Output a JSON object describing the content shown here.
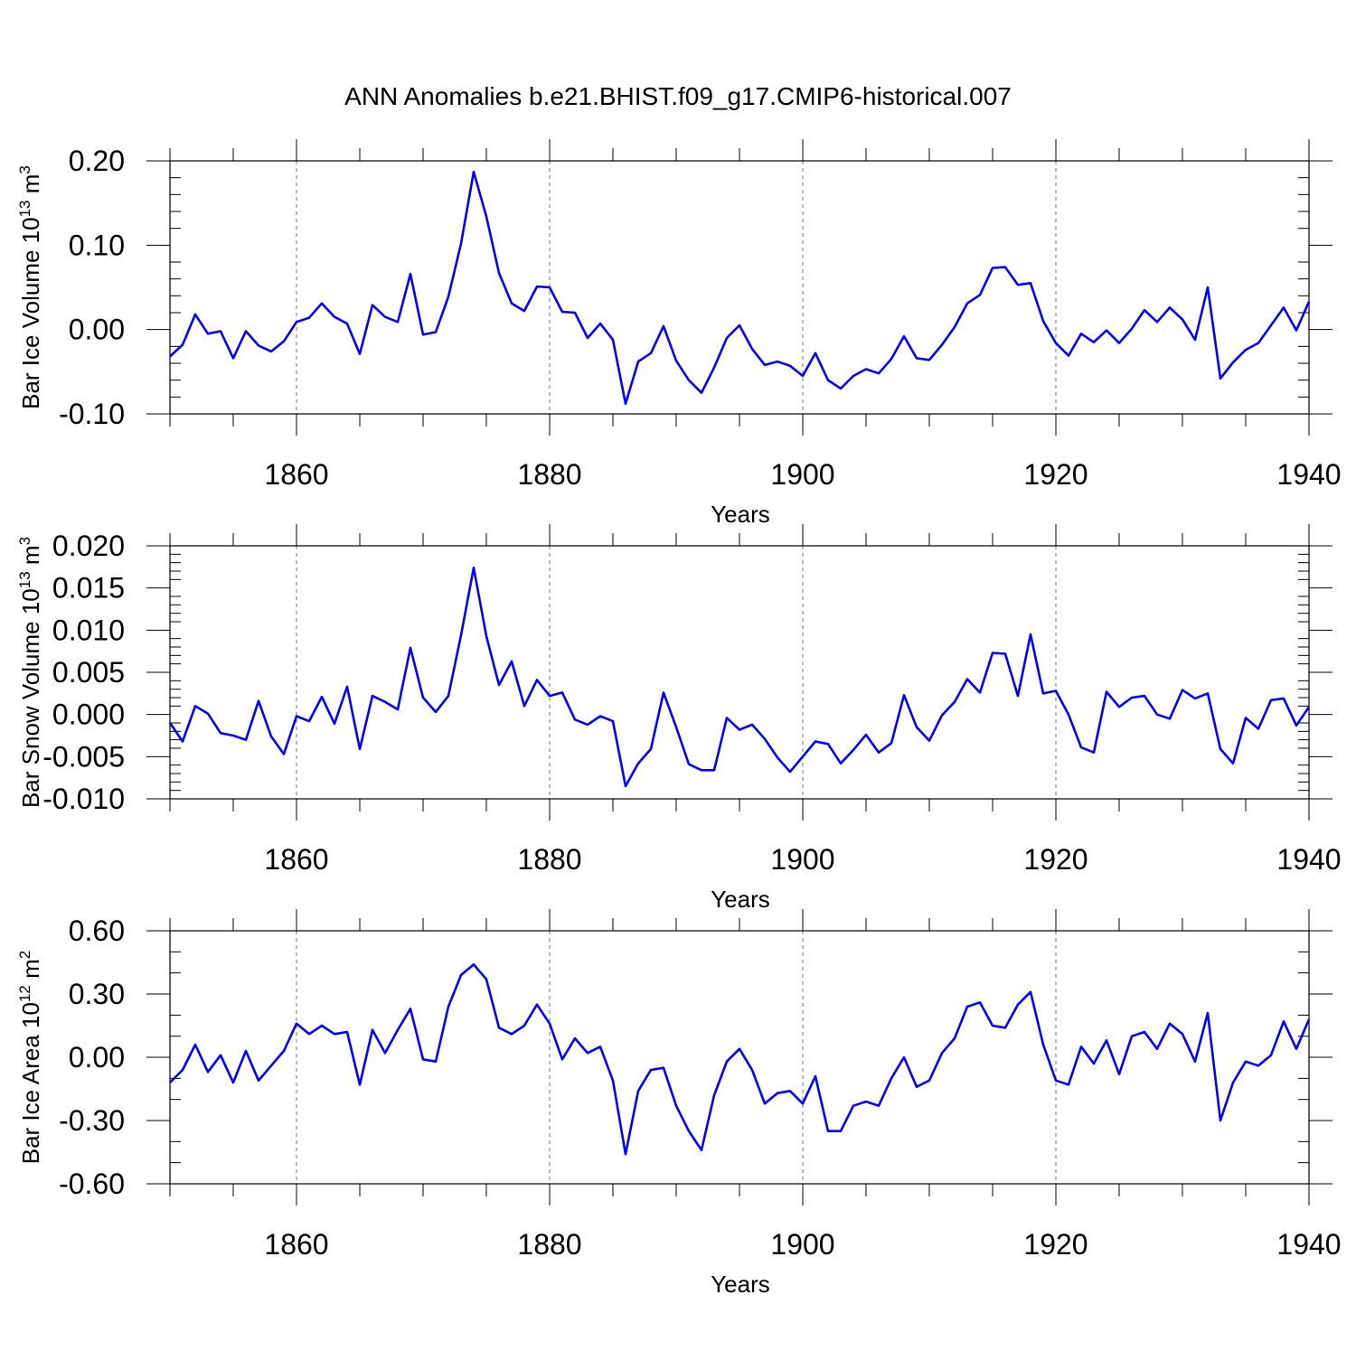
{
  "title": "ANN Anomalies b.e21.BHIST.f09_g17.CMIP6-historical.007",
  "line_color": "#0000ff",
  "chart_data": [
    {
      "type": "line",
      "ylabel_parts": [
        "Bar Ice Volume 10",
        "13",
        " m",
        "3"
      ],
      "xlabel": "Years",
      "xlim": [
        1850,
        1940
      ],
      "ylim": [
        -0.1,
        0.2
      ],
      "yticks": [
        -0.1,
        0.0,
        0.1,
        0.2
      ],
      "ytick_labels": [
        "-0.10",
        "0.00",
        "0.10",
        "0.20"
      ],
      "yminor_step": 0.02,
      "xticks": [
        1860,
        1880,
        1900,
        1920,
        1940
      ],
      "xtick_labels": [
        "1860",
        "1880",
        "1900",
        "1920",
        "1940"
      ],
      "grid_x_dashed": [
        1860,
        1880,
        1900,
        1920
      ],
      "x_start": 1850,
      "values": [
        -0.032,
        -0.018,
        0.018,
        -0.005,
        -0.002,
        -0.034,
        -0.002,
        -0.019,
        -0.026,
        -0.014,
        0.009,
        0.014,
        0.031,
        0.015,
        0.007,
        -0.029,
        0.029,
        0.015,
        0.009,
        0.066,
        -0.006,
        -0.003,
        0.039,
        0.102,
        0.187,
        0.134,
        0.067,
        0.031,
        0.022,
        0.051,
        0.05,
        0.021,
        0.02,
        -0.01,
        0.007,
        -0.012,
        -0.088,
        -0.038,
        -0.028,
        0.004,
        -0.037,
        -0.06,
        -0.075,
        -0.045,
        -0.01,
        0.005,
        -0.023,
        -0.042,
        -0.038,
        -0.043,
        -0.055,
        -0.028,
        -0.06,
        -0.07,
        -0.055,
        -0.047,
        -0.052,
        -0.035,
        -0.008,
        -0.034,
        -0.036,
        -0.018,
        0.003,
        0.031,
        0.041,
        0.073,
        0.074,
        0.053,
        0.055,
        0.01,
        -0.016,
        -0.031,
        -0.005,
        -0.015,
        -0.001,
        -0.016,
        0.001,
        0.023,
        0.009,
        0.026,
        0.012,
        -0.012,
        0.05,
        -0.058,
        -0.039,
        -0.024,
        -0.016,
        0.005,
        0.026,
        -0.001,
        0.033
      ]
    },
    {
      "type": "line",
      "ylabel_parts": [
        "Bar Snow Volume 10",
        "13",
        " m",
        "3"
      ],
      "xlabel": "Years",
      "xlim": [
        1850,
        1940
      ],
      "ylim": [
        -0.01,
        0.02
      ],
      "yticks": [
        -0.01,
        -0.005,
        0.0,
        0.005,
        0.01,
        0.015,
        0.02
      ],
      "ytick_labels": [
        "-0.010",
        "-0.005",
        "0.000",
        "0.005",
        "0.010",
        "0.015",
        "0.020"
      ],
      "yminor_step": 0.001,
      "xticks": [
        1860,
        1880,
        1900,
        1920,
        1940
      ],
      "xtick_labels": [
        "1860",
        "1880",
        "1900",
        "1920",
        "1940"
      ],
      "grid_x_dashed": [
        1860,
        1880,
        1900,
        1920
      ],
      "x_start": 1850,
      "values": [
        -0.001,
        -0.0032,
        0.001,
        0.0001,
        -0.0022,
        -0.0025,
        -0.003,
        0.0016,
        -0.0026,
        -0.0047,
        -0.0002,
        -0.0008,
        0.0021,
        -0.0011,
        0.0033,
        -0.0041,
        0.0022,
        0.0015,
        0.0006,
        0.0079,
        0.002,
        0.0003,
        0.0022,
        0.0094,
        0.0174,
        0.0093,
        0.0035,
        0.0063,
        0.001,
        0.0041,
        0.0022,
        0.0026,
        -0.0006,
        -0.0012,
        -0.0002,
        -0.0008,
        -0.0085,
        -0.0058,
        -0.0041,
        0.0026,
        -0.0015,
        -0.0059,
        -0.0066,
        -0.0066,
        -0.0004,
        -0.0018,
        -0.0012,
        -0.0029,
        -0.0051,
        -0.0068,
        -0.005,
        -0.0032,
        -0.0035,
        -0.0058,
        -0.0042,
        -0.0024,
        -0.0045,
        -0.0034,
        0.0023,
        -0.0015,
        -0.0031,
        -0.0001,
        0.0015,
        0.0042,
        0.0026,
        0.0073,
        0.0072,
        0.0022,
        0.0095,
        0.0025,
        0.0028,
        0.0,
        -0.0039,
        -0.0045,
        0.0027,
        0.0009,
        0.002,
        0.0022,
        0.0,
        -0.0005,
        0.0029,
        0.0019,
        0.0025,
        -0.0041,
        -0.0058,
        -0.0004,
        -0.0017,
        0.0017,
        0.0019,
        -0.0013,
        0.0009
      ]
    },
    {
      "type": "line",
      "ylabel_parts": [
        "Bar Ice Area 10",
        "12",
        " m",
        "2"
      ],
      "xlabel": "Years",
      "xlim": [
        1850,
        1940
      ],
      "ylim": [
        -0.6,
        0.6
      ],
      "yticks": [
        -0.6,
        -0.3,
        0.0,
        0.3,
        0.6
      ],
      "ytick_labels": [
        "-0.60",
        "-0.30",
        "0.00",
        "0.30",
        "0.60"
      ],
      "yminor_step": 0.1,
      "xticks": [
        1860,
        1880,
        1900,
        1920,
        1940
      ],
      "xtick_labels": [
        "1860",
        "1880",
        "1900",
        "1920",
        "1940"
      ],
      "grid_x_dashed": [
        1860,
        1880,
        1900,
        1920
      ],
      "x_start": 1850,
      "values": [
        -0.12,
        -0.06,
        0.06,
        -0.07,
        0.01,
        -0.12,
        0.03,
        -0.11,
        -0.04,
        0.03,
        0.16,
        0.11,
        0.15,
        0.11,
        0.12,
        -0.13,
        0.13,
        0.02,
        0.13,
        0.23,
        -0.01,
        -0.02,
        0.24,
        0.39,
        0.44,
        0.37,
        0.14,
        0.11,
        0.15,
        0.25,
        0.16,
        -0.01,
        0.09,
        0.02,
        0.05,
        -0.11,
        -0.46,
        -0.16,
        -0.06,
        -0.05,
        -0.23,
        -0.35,
        -0.44,
        -0.18,
        -0.02,
        0.04,
        -0.06,
        -0.22,
        -0.17,
        -0.16,
        -0.22,
        -0.09,
        -0.35,
        -0.35,
        -0.23,
        -0.21,
        -0.23,
        -0.1,
        0.0,
        -0.14,
        -0.11,
        0.02,
        0.09,
        0.24,
        0.26,
        0.15,
        0.14,
        0.25,
        0.31,
        0.06,
        -0.11,
        -0.13,
        0.05,
        -0.03,
        0.08,
        -0.08,
        0.1,
        0.12,
        0.04,
        0.16,
        0.11,
        -0.02,
        0.21,
        -0.3,
        -0.12,
        -0.02,
        -0.04,
        0.01,
        0.17,
        0.04,
        0.18
      ]
    }
  ]
}
